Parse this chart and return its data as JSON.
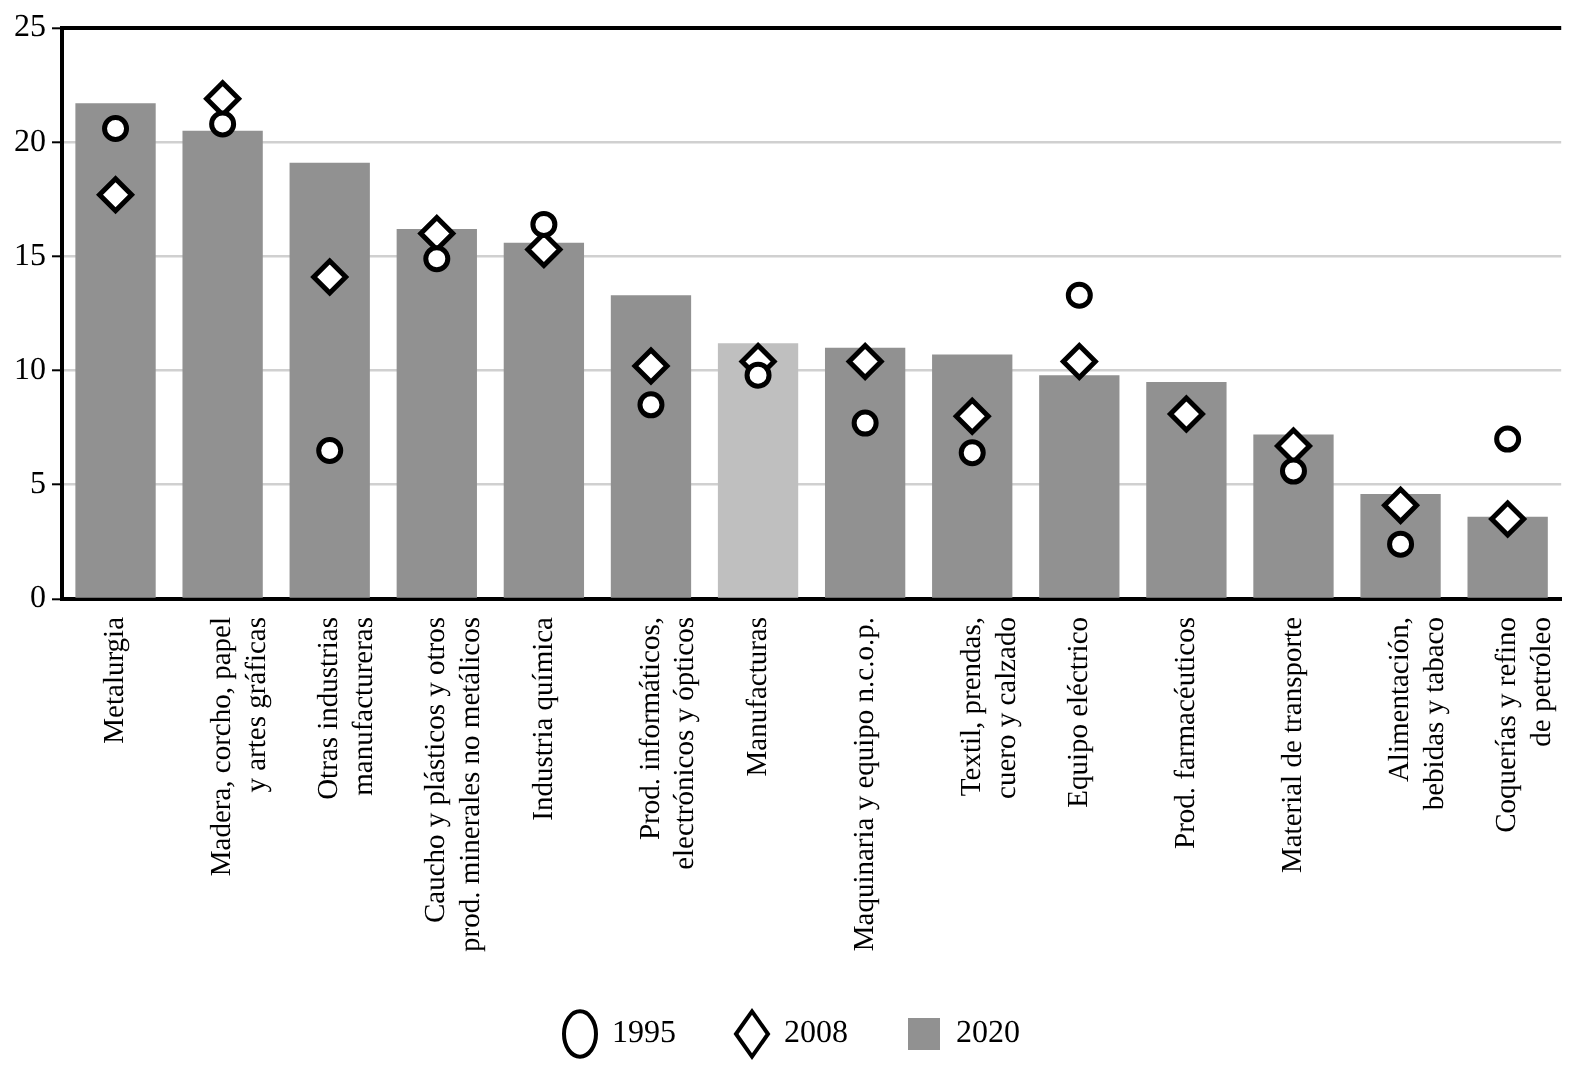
{
  "chart_data": {
    "type": "bar",
    "categories": [
      "Metalurgia",
      "Madera, corcho, papel\ny artes gráficas",
      "Otras industrias\nmanufactureras",
      "Caucho y plásticos y otros\nprod. minerales no metálicos",
      "Industria química",
      "Prod. informáticos,\nelectrónicos y ópticos",
      "Manufacturas",
      "Maquinaria y equipo n.c.o.p.",
      "Textil, prendas,\ncuero y calzado",
      "Equipo eléctrico",
      "Prod. farmacéuticos",
      "Material de transporte",
      "Alimentación,\nbebidas y tabaco",
      "Coquerías y refino\nde petróleo"
    ],
    "series": [
      {
        "name": "1995",
        "type": "scatter",
        "marker": "circle",
        "color": "#000000",
        "x": [
          "Metalurgia",
          "Madera, corcho, papel\ny artes gráficas",
          "Otras industrias\nmanufactureras",
          "Caucho y plásticos y otros\nprod. minerales no metálicos",
          "Industria química",
          "Prod. informáticos,\nelectrónicos y ópticos",
          "Manufacturas",
          "Maquinaria y equipo n.c.o.p.",
          "Textil, prendas,\ncuero y calzado",
          "Equipo eléctrico",
          "Prod. farmacéuticos",
          "Material de transporte",
          "Alimentación,\nbebidas y tabaco",
          "Coquerías y refino\nde petróleo"
        ],
        "values": [
          20.6,
          20.8,
          6.5,
          14.9,
          16.4,
          8.5,
          9.8,
          7.7,
          6.4,
          13.3,
          null,
          5.6,
          2.4,
          7.0
        ]
      },
      {
        "name": "2008",
        "type": "scatter",
        "marker": "diamond",
        "color": "#000000",
        "x": [
          "Metalurgia",
          "Madera, corcho, papel\ny artes gráficas",
          "Otras industrias\nmanufactureras",
          "Caucho y plásticos y otros\nprod. minerales no metálicos",
          "Industria química",
          "Prod. informáticos,\nelectrónicos y ópticos",
          "Manufacturas",
          "Maquinaria y equipo n.c.o.p.",
          "Textil, prendas,\ncuero y calzado",
          "Equipo eléctrico",
          "Prod. farmacéuticos",
          "Material de transporte",
          "Alimentación,\nbebidas y tabaco",
          "Coquerías y refino\nde petróleo"
        ],
        "values": [
          17.7,
          21.9,
          14.1,
          16.0,
          15.3,
          10.2,
          10.4,
          10.4,
          8.0,
          10.4,
          8.1,
          6.7,
          4.1,
          3.5
        ]
      },
      {
        "name": "2020",
        "color": "#919191",
        "colors": [
          "#919191",
          "#919191",
          "#919191",
          "#919191",
          "#919191",
          "#919191",
          "#bfbfbf",
          "#919191",
          "#919191",
          "#919191",
          "#919191",
          "#919191",
          "#919191",
          "#919191"
        ],
        "values": [
          21.7,
          20.5,
          19.1,
          16.2,
          15.6,
          13.3,
          11.2,
          11.0,
          10.7,
          9.8,
          9.5,
          7.2,
          4.6,
          3.6
        ]
      }
    ],
    "ylim": [
      0,
      25
    ],
    "yticks": [
      0,
      5,
      10,
      15,
      20,
      25
    ],
    "grid": "y",
    "legend": "bottom"
  }
}
